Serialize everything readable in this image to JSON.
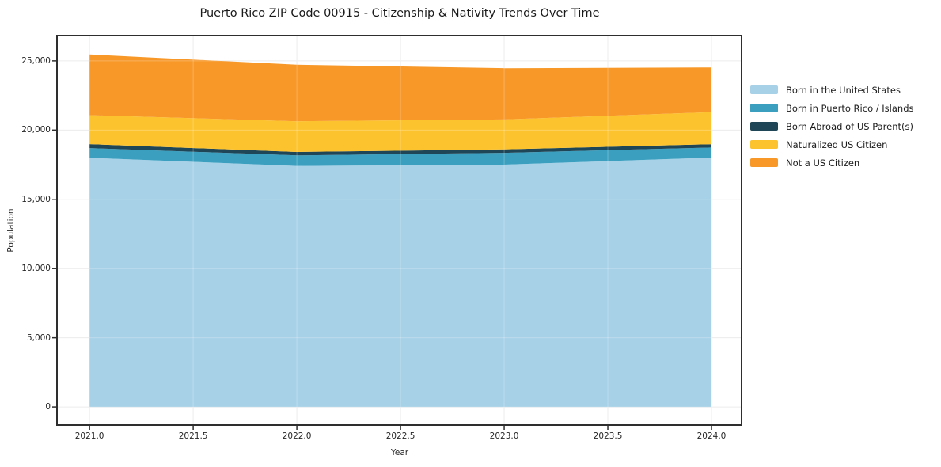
{
  "chart_data": {
    "type": "area",
    "stacked": true,
    "title": "Puerto Rico ZIP Code 00915 - Citizenship & Nativity Trends Over Time",
    "xlabel": "Year",
    "ylabel": "Population",
    "x": [
      2021,
      2022,
      2023,
      2024
    ],
    "series": [
      {
        "name": "Born in the United States",
        "color": "#A7D1E7",
        "values": [
          18000,
          17410,
          17500,
          18010
        ]
      },
      {
        "name": "Born in Puerto Rico / Islands",
        "color": "#3BA0C0",
        "values": [
          700,
          760,
          855,
          725
        ]
      },
      {
        "name": "Born Abroad of US Parent(s)",
        "color": "#1F4656",
        "values": [
          285,
          245,
          250,
          245
        ]
      },
      {
        "name": "Naturalized US Citizen",
        "color": "#FDC32E",
        "values": [
          2090,
          2220,
          2160,
          2315
        ]
      },
      {
        "name": "Not a US Citizen",
        "color": "#F79828",
        "values": [
          4385,
          4085,
          3705,
          3230
        ]
      }
    ],
    "xlim": [
      2020.843,
      2024.145
    ],
    "ylim": [
      -1310,
      26823
    ],
    "x_ticks": [
      {
        "value": 2021.0,
        "label": "2021.0"
      },
      {
        "value": 2021.5,
        "label": "2021.5"
      },
      {
        "value": 2022.0,
        "label": "2022.0"
      },
      {
        "value": 2022.5,
        "label": "2022.5"
      },
      {
        "value": 2023.0,
        "label": "2023.0"
      },
      {
        "value": 2023.5,
        "label": "2023.5"
      },
      {
        "value": 2024.0,
        "label": "2024.0"
      }
    ],
    "y_ticks": [
      {
        "value": 0,
        "label": "0"
      },
      {
        "value": 5000,
        "label": "5,000"
      },
      {
        "value": 10000,
        "label": "10,000"
      },
      {
        "value": 15000,
        "label": "15,000"
      },
      {
        "value": 20000,
        "label": "20,000"
      },
      {
        "value": 25000,
        "label": "25,000"
      }
    ],
    "grid": true,
    "legend_position": "right",
    "grid_color": "#E7E7E7",
    "spine_color": "#2E2E2E"
  }
}
